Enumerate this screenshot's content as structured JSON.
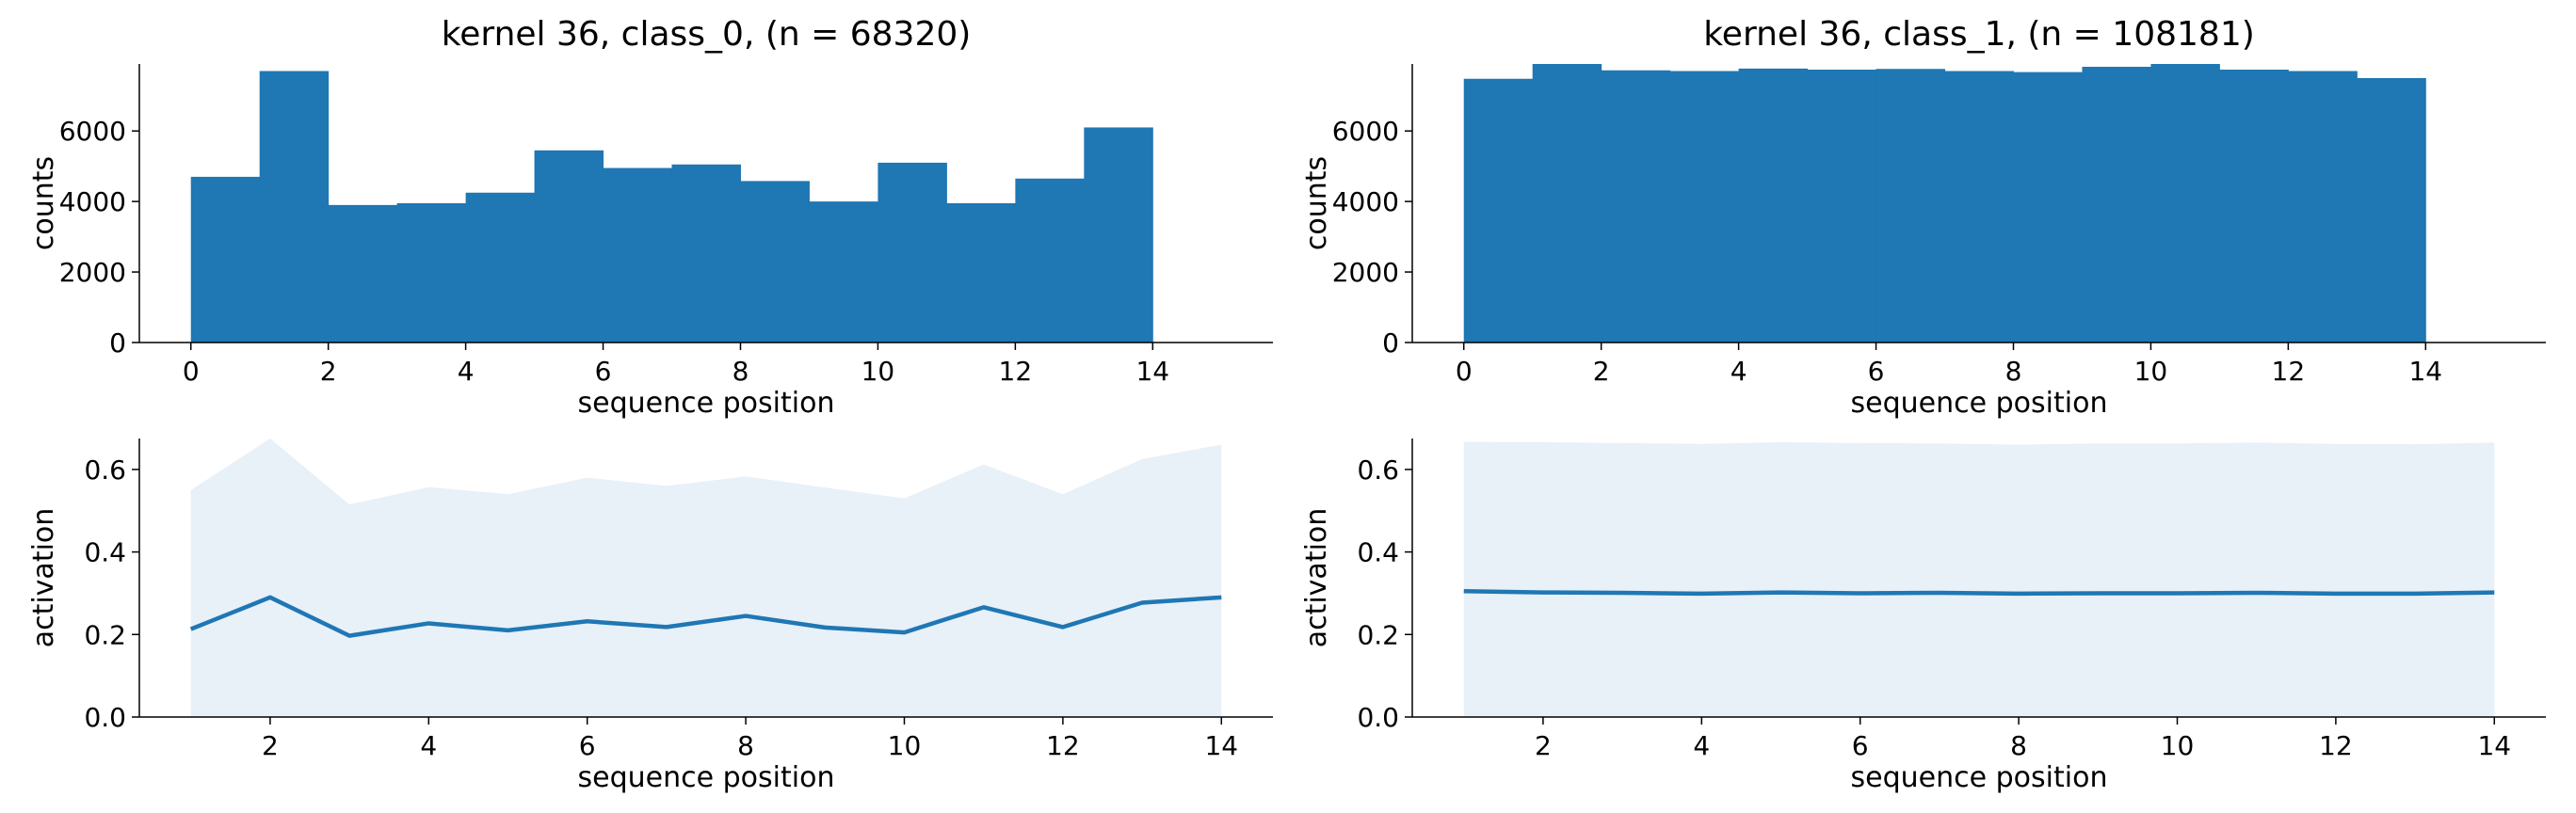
{
  "colors": {
    "bar": "#1f77b4",
    "line": "#1f77b4",
    "band": "#e8f0f8"
  },
  "chart_data": [
    {
      "type": "bar",
      "title": "kernel 36, class_0, (n = 68320)",
      "xlabel": "sequence position",
      "ylabel": "counts",
      "xlim": [
        -0.75,
        15.75
      ],
      "ylim": [
        0,
        7900
      ],
      "xticks": [
        0,
        2,
        4,
        6,
        8,
        10,
        12,
        14
      ],
      "yticks": [
        0,
        2000,
        4000,
        6000
      ],
      "bin_edges": [
        0,
        1,
        2,
        3,
        4,
        5,
        6,
        7,
        8,
        9,
        10,
        11,
        12,
        13,
        14
      ],
      "values": [
        4700,
        7700,
        3900,
        3950,
        4250,
        5450,
        4950,
        5050,
        4580,
        4000,
        5100,
        3950,
        4650,
        6100
      ]
    },
    {
      "type": "bar",
      "title": "kernel 36, class_1, (n = 108181)",
      "xlabel": "sequence position",
      "ylabel": "counts",
      "xlim": [
        -0.75,
        15.75
      ],
      "ylim": [
        0,
        7900
      ],
      "xticks": [
        0,
        2,
        4,
        6,
        8,
        10,
        12,
        14
      ],
      "yticks": [
        0,
        2000,
        4000,
        6000
      ],
      "bin_edges": [
        0,
        1,
        2,
        3,
        4,
        5,
        6,
        7,
        8,
        9,
        10,
        11,
        12,
        13,
        14
      ],
      "values": [
        7480,
        7900,
        7720,
        7700,
        7770,
        7740,
        7760,
        7700,
        7670,
        7820,
        7900,
        7740,
        7700,
        7500
      ]
    },
    {
      "type": "line",
      "title": "",
      "xlabel": "sequence position",
      "ylabel": "activation",
      "xlim": [
        0.35,
        14.65
      ],
      "ylim": [
        0,
        0.675
      ],
      "xticks": [
        2,
        4,
        6,
        8,
        10,
        12,
        14
      ],
      "yticks": [
        0.0,
        0.2,
        0.4,
        0.6
      ],
      "x": [
        1,
        2,
        3,
        4,
        5,
        6,
        7,
        8,
        9,
        10,
        11,
        12,
        13,
        14
      ],
      "mean": [
        0.213,
        0.29,
        0.197,
        0.227,
        0.21,
        0.232,
        0.218,
        0.245,
        0.217,
        0.205,
        0.266,
        0.218,
        0.277,
        0.29
      ],
      "band_upper": [
        0.55,
        0.675,
        0.515,
        0.557,
        0.54,
        0.58,
        0.56,
        0.583,
        0.556,
        0.53,
        0.612,
        0.54,
        0.625,
        0.66
      ],
      "band_lower": [
        0,
        0,
        0,
        0,
        0,
        0,
        0,
        0,
        0,
        0,
        0,
        0,
        0,
        0
      ]
    },
    {
      "type": "line",
      "title": "",
      "xlabel": "sequence position",
      "ylabel": "activation",
      "xlim": [
        0.35,
        14.65
      ],
      "ylim": [
        0,
        0.675
      ],
      "xticks": [
        2,
        4,
        6,
        8,
        10,
        12,
        14
      ],
      "yticks": [
        0.0,
        0.2,
        0.4,
        0.6
      ],
      "x": [
        1,
        2,
        3,
        4,
        5,
        6,
        7,
        8,
        9,
        10,
        11,
        12,
        13,
        14
      ],
      "mean": [
        0.305,
        0.302,
        0.301,
        0.299,
        0.302,
        0.3,
        0.301,
        0.299,
        0.3,
        0.3,
        0.301,
        0.299,
        0.299,
        0.302
      ],
      "band_upper": [
        0.667,
        0.666,
        0.664,
        0.662,
        0.666,
        0.664,
        0.663,
        0.66,
        0.663,
        0.663,
        0.665,
        0.662,
        0.661,
        0.665
      ],
      "band_lower": [
        0,
        0,
        0,
        0,
        0,
        0,
        0,
        0,
        0,
        0,
        0,
        0,
        0,
        0
      ]
    }
  ]
}
